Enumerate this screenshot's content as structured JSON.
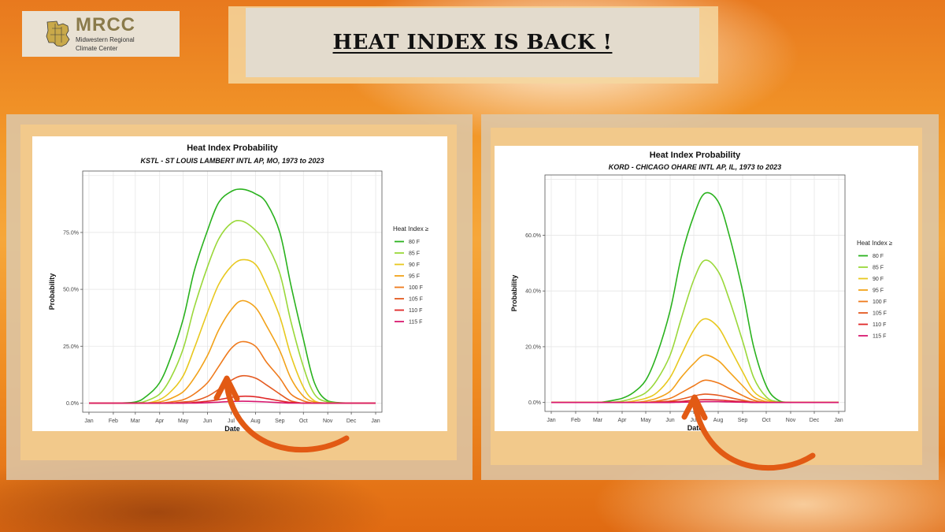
{
  "logo": {
    "name": "MRCC",
    "subtitle_line1": "Midwestern Regional",
    "subtitle_line2": "Climate Center"
  },
  "headline": "HEAT INDEX IS BACK !",
  "colors": {
    "80 F": "#2ab21e",
    "85 F": "#9ad83a",
    "90 F": "#e8c81e",
    "95 F": "#f2a21a",
    "100 F": "#ef7a1c",
    "105 F": "#e45a20",
    "110 F": "#e02828",
    "115 F": "#d81870",
    "arrow": "#e25a14"
  },
  "chart_data": [
    {
      "type": "line",
      "title": "Heat Index Probability",
      "subtitle": "KSTL - ST LOUIS LAMBERT INTL AP, MO, 1973 to 2023",
      "xlabel": "Date",
      "ylabel": "Probability",
      "x_ticks": [
        "Jan",
        "Feb",
        "Mar",
        "Apr",
        "May",
        "Jun",
        "Jul",
        "Aug",
        "Sep",
        "Oct",
        "Nov",
        "Dec",
        "Jan"
      ],
      "y_ticks": [
        "0.0%",
        "25.0%",
        "50.0%",
        "75.0%"
      ],
      "ylim": [
        0,
        100
      ],
      "grid": true,
      "legend_title": "Heat Index ≥",
      "legend_position": "right",
      "x": [
        "Jan 1",
        "Feb 1",
        "Mar 1",
        "Mar 15",
        "Apr 1",
        "Apr 15",
        "May 1",
        "May 15",
        "Jun 1",
        "Jun 15",
        "Jul 1",
        "Jul 15",
        "Aug 1",
        "Aug 15",
        "Sep 1",
        "Sep 15",
        "Oct 1",
        "Oct 15",
        "Nov 1",
        "Dec 1",
        "Jan 1"
      ],
      "series": [
        {
          "name": "80 F",
          "values": [
            0,
            0,
            0.5,
            3,
            9,
            20,
            37,
            58,
            76,
            88,
            93,
            94,
            92,
            88,
            75,
            52,
            28,
            9,
            1,
            0,
            0
          ]
        },
        {
          "name": "85 F",
          "values": [
            0,
            0,
            0,
            1,
            4,
            11,
            24,
            42,
            60,
            72,
            79,
            80,
            76,
            70,
            57,
            36,
            16,
            4,
            0.5,
            0,
            0
          ]
        },
        {
          "name": "90 F",
          "values": [
            0,
            0,
            0,
            0,
            1.5,
            5,
            12,
            24,
            40,
            52,
            60,
            63,
            61,
            52,
            38,
            21,
            7,
            1,
            0,
            0,
            0
          ]
        },
        {
          "name": "95 F",
          "values": [
            0,
            0,
            0,
            0,
            0.5,
            2,
            5,
            11,
            21,
            32,
            41,
            45,
            42,
            34,
            23,
            11,
            3,
            0.5,
            0,
            0,
            0
          ]
        },
        {
          "name": "100 F",
          "values": [
            0,
            0,
            0,
            0,
            0,
            0.5,
            1.5,
            4,
            9,
            16,
            24,
            27,
            25,
            18,
            11,
            4,
            1,
            0,
            0,
            0,
            0
          ]
        },
        {
          "name": "105 F",
          "values": [
            0,
            0,
            0,
            0,
            0,
            0,
            0.5,
            1,
            3,
            6,
            10,
            12,
            11,
            8,
            4,
            1,
            0,
            0,
            0,
            0,
            0
          ]
        },
        {
          "name": "110 F",
          "values": [
            0,
            0,
            0,
            0,
            0,
            0,
            0,
            0.3,
            0.8,
            1.5,
            2.5,
            3,
            2.8,
            2,
            1,
            0.3,
            0,
            0,
            0,
            0,
            0
          ]
        },
        {
          "name": "115 F",
          "values": [
            0,
            0,
            0,
            0,
            0,
            0,
            0,
            0,
            0.2,
            0.4,
            0.7,
            0.8,
            0.7,
            0.5,
            0.2,
            0,
            0,
            0,
            0,
            0,
            0
          ]
        }
      ]
    },
    {
      "type": "line",
      "title": "Heat Index Probability",
      "subtitle": "KORD - CHICAGO OHARE INTL AP, IL, 1973 to 2023",
      "xlabel": "Date",
      "ylabel": "Probability",
      "x_ticks": [
        "Jan",
        "Feb",
        "Mar",
        "Apr",
        "May",
        "Jun",
        "Jul",
        "Aug",
        "Sep",
        "Oct",
        "Nov",
        "Dec",
        "Jan"
      ],
      "y_ticks": [
        "0.0%",
        "20.0%",
        "40.0%",
        "60.0%"
      ],
      "ylim": [
        0,
        80
      ],
      "grid": true,
      "legend_title": "Heat Index ≥",
      "legend_position": "right",
      "x": [
        "Jan 1",
        "Feb 1",
        "Mar 1",
        "Mar 15",
        "Apr 1",
        "Apr 15",
        "May 1",
        "May 15",
        "Jun 1",
        "Jun 15",
        "Jul 1",
        "Jul 15",
        "Aug 1",
        "Aug 15",
        "Sep 1",
        "Sep 15",
        "Oct 1",
        "Oct 15",
        "Nov 1",
        "Dec 1",
        "Jan 1"
      ],
      "series": [
        {
          "name": "80 F",
          "values": [
            0,
            0,
            0,
            0.5,
            1.5,
            3.5,
            8,
            17,
            33,
            52,
            67,
            75,
            72,
            60,
            40,
            20,
            6,
            1,
            0,
            0,
            0
          ]
        },
        {
          "name": "85 F",
          "values": [
            0,
            0,
            0,
            0,
            0.5,
            1.5,
            3.5,
            8,
            17,
            30,
            44,
            51,
            47,
            37,
            22,
            9,
            2,
            0.3,
            0,
            0,
            0
          ]
        },
        {
          "name": "90 F",
          "values": [
            0,
            0,
            0,
            0,
            0,
            0.5,
            1.5,
            3.5,
            9,
            17,
            26,
            30,
            27,
            20,
            11,
            4,
            1,
            0,
            0,
            0,
            0
          ]
        },
        {
          "name": "95 F",
          "values": [
            0,
            0,
            0,
            0,
            0,
            0,
            0.5,
            1.5,
            4,
            9,
            14,
            17,
            15,
            11,
            6,
            2,
            0.3,
            0,
            0,
            0,
            0
          ]
        },
        {
          "name": "100 F",
          "values": [
            0,
            0,
            0,
            0,
            0,
            0,
            0,
            0.5,
            1.5,
            3.5,
            6,
            8,
            7,
            5,
            2.5,
            0.8,
            0,
            0,
            0,
            0,
            0
          ]
        },
        {
          "name": "105 F",
          "values": [
            0,
            0,
            0,
            0,
            0,
            0,
            0,
            0.2,
            0.5,
            1.2,
            2.3,
            3,
            2.6,
            1.8,
            0.8,
            0.2,
            0,
            0,
            0,
            0,
            0
          ]
        },
        {
          "name": "110 F",
          "values": [
            0,
            0,
            0,
            0,
            0,
            0,
            0,
            0,
            0.2,
            0.4,
            0.8,
            1,
            0.9,
            0.6,
            0.3,
            0,
            0,
            0,
            0,
            0,
            0
          ]
        },
        {
          "name": "115 F",
          "values": [
            0,
            0,
            0,
            0,
            0,
            0,
            0,
            0,
            0,
            0.1,
            0.2,
            0.3,
            0.3,
            0.2,
            0.1,
            0,
            0,
            0,
            0,
            0,
            0
          ]
        }
      ]
    }
  ]
}
